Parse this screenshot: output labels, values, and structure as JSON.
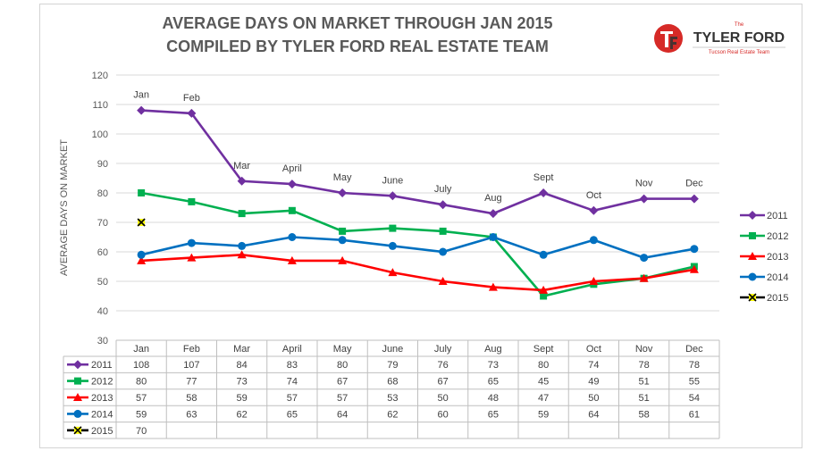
{
  "titles": {
    "line1": "AVERAGE DAYS ON MARKET THROUGH JAN 2015",
    "line2": "COMPILED BY TYLER FORD REAL ESTATE TEAM"
  },
  "logo": {
    "small": "The",
    "big": "TYLER FORD",
    "sub": "Tucson Real Estate Team",
    "monogram": "TF",
    "colors": {
      "red": "#d62a27",
      "dark": "#333333"
    }
  },
  "chart_data": {
    "type": "line",
    "ylabel": "AVERAGE DAYS ON MARKET",
    "ylim": [
      30,
      120
    ],
    "yticks": [
      30,
      40,
      50,
      60,
      70,
      80,
      90,
      100,
      110,
      120
    ],
    "categories": [
      "Jan",
      "Feb",
      "Mar",
      "April",
      "May",
      "June",
      "July",
      "Aug",
      "Sept",
      "Oct",
      "Nov",
      "Dec"
    ],
    "grid": true,
    "legend": "right",
    "data_labels_series": "2011",
    "series": [
      {
        "name": "2011",
        "color": "#7030a0",
        "marker": "diamond",
        "values": [
          108,
          107,
          84,
          83,
          80,
          79,
          76,
          73,
          80,
          74,
          78,
          78
        ]
      },
      {
        "name": "2012",
        "color": "#00b050",
        "marker": "square",
        "values": [
          80,
          77,
          73,
          74,
          67,
          68,
          67,
          65,
          45,
          49,
          51,
          55
        ]
      },
      {
        "name": "2013",
        "color": "#ff0000",
        "marker": "triangle",
        "values": [
          57,
          58,
          59,
          57,
          57,
          53,
          50,
          48,
          47,
          50,
          51,
          54
        ]
      },
      {
        "name": "2014",
        "color": "#0070c0",
        "marker": "circle",
        "values": [
          59,
          63,
          62,
          65,
          64,
          62,
          60,
          65,
          59,
          64,
          58,
          61
        ]
      },
      {
        "name": "2015",
        "color": "#000000",
        "marker": "x",
        "marker_fill": "#ffff00",
        "values": [
          70,
          null,
          null,
          null,
          null,
          null,
          null,
          null,
          null,
          null,
          null,
          null
        ]
      }
    ]
  }
}
